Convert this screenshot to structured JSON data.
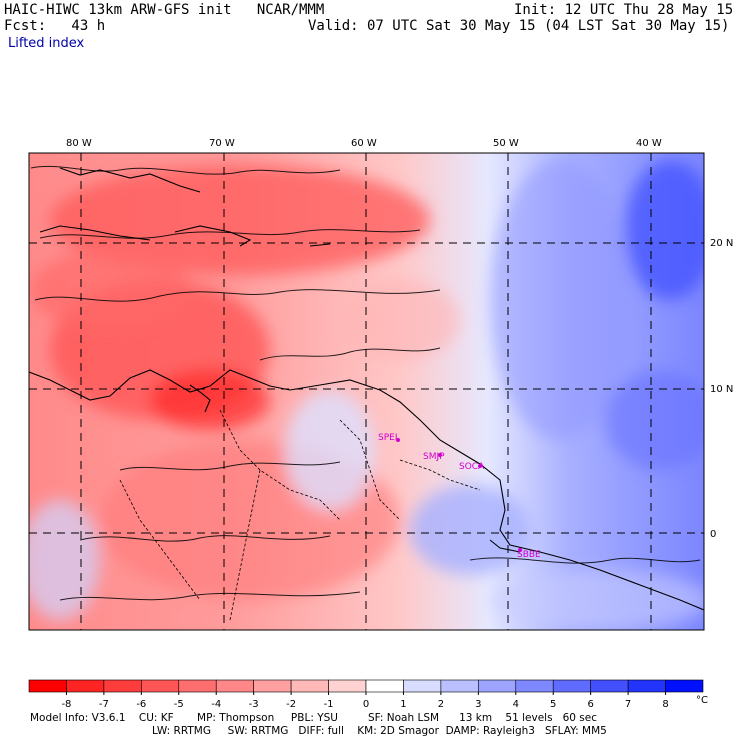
{
  "header": {
    "title": "HAIC-HIWC 13km ARW-GFS init   NCAR/MMM",
    "init": "Init: 12 UTC Thu 28 May 15",
    "forecast": "Fcst:   43 h",
    "valid": "Valid: 07 UTC Sat 30 May 15 (04 LST Sat 30 May 15)",
    "field": "Lifted index"
  },
  "map": {
    "longitude_labels": [
      "80 W",
      "70 W",
      "60 W",
      "50 W",
      "40 W"
    ],
    "latitude_labels": [
      "20 N",
      "10 N",
      "0"
    ],
    "stations": [
      "SPEL",
      "SMJP",
      "SOCA",
      "SBBE"
    ]
  },
  "colorbar": {
    "labels": [
      "-8",
      "-7",
      "-6",
      "-5",
      "-4",
      "-3",
      "-2",
      "-1",
      "0",
      "1",
      "2",
      "3",
      "4",
      "5",
      "6",
      "7",
      "8"
    ],
    "unit": "°C",
    "colors": [
      "#ff0000",
      "#ff2424",
      "#ff3c3c",
      "#ff5555",
      "#ff6e6e",
      "#ff8787",
      "#ffa0a0",
      "#ffb9b9",
      "#ffd2d2",
      "#ffffff",
      "#d8dcff",
      "#bac0ff",
      "#9ca4ff",
      "#7e88ff",
      "#606cff",
      "#4250ff",
      "#2434ff",
      "#0010ff"
    ]
  },
  "footer": {
    "line1": "Model Info: V3.6.1    CU: KF       MP: Thompson     PBL: YSU         SF: Noah LSM      13 km    51 levels   60 sec",
    "line2": "LW: RRTMG     SW: RRTMG   DIFF: full    KM: 2D Smagor  DAMP: Rayleigh3   SFLAY: MM5"
  }
}
